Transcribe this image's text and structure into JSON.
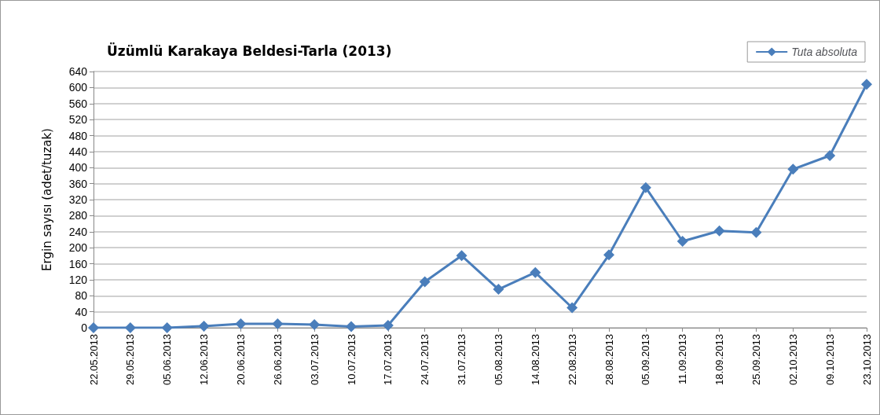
{
  "chart_data": {
    "type": "line",
    "title": "Üzümlü Karakaya Beldesi-Tarla (2013)",
    "ylabel": "Ergin sayısı (adet/tuzak)",
    "categories": [
      "22.05.2013",
      "29.05.2013",
      "05.06.2013",
      "12.06.2013",
      "20.06.2013",
      "26.06.2013",
      "03.07.2013",
      "10.07.2013",
      "17.07.2013",
      "24.07.2013",
      "31.07.2013",
      "05.08.2013",
      "14.08.2013",
      "22.08.2013",
      "28.08.2013",
      "05.09.2013",
      "11.09.2013",
      "18.09.2013",
      "25.09.2013",
      "02.10.2013",
      "09.10.2013",
      "23.10.2013"
    ],
    "series": [
      {
        "name": "Tuta absoluta",
        "color": "#4a7ebb",
        "values": [
          0,
          0,
          0,
          4,
          10,
          10,
          8,
          3,
          6,
          115,
          180,
          96,
          138,
          50,
          182,
          350,
          216,
          242,
          238,
          396,
          430,
          608
        ]
      }
    ],
    "ylim": [
      0,
      640
    ],
    "yticks": [
      0,
      40,
      80,
      120,
      160,
      200,
      240,
      280,
      320,
      360,
      400,
      440,
      480,
      520,
      560,
      600,
      640
    ],
    "grid": "y",
    "legend": "top right",
    "marker": "diamond",
    "line_style": "solid"
  }
}
